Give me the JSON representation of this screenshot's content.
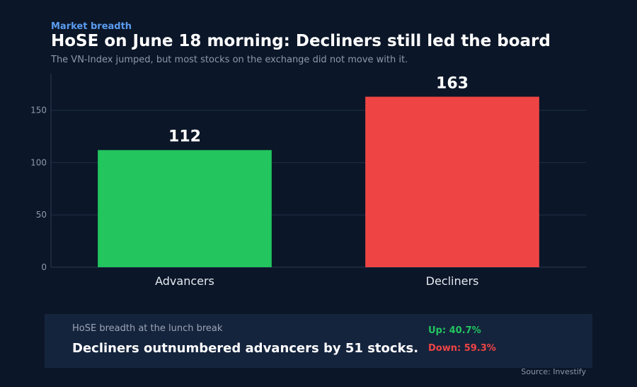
{
  "header": {
    "kicker": "Market breadth",
    "title": "HoSE on June 18 morning: Decliners still led the board",
    "subtitle": "The VN-Index jumped, but most stocks on the exchange did not move with it."
  },
  "chart_data": {
    "type": "bar",
    "categories": [
      "Advancers",
      "Decliners"
    ],
    "values": [
      112,
      163
    ],
    "colors": [
      "#22c55e",
      "#ef4444"
    ],
    "ylim": [
      0,
      185
    ],
    "yticks": [
      0,
      50,
      100,
      150
    ],
    "grid": true,
    "xlabel": "",
    "ylabel": ""
  },
  "summary": {
    "label": "HoSE breadth at the lunch break",
    "headline": "Decliners outnumbered advancers by 51 stocks.",
    "up": "Up: 40.7%",
    "down": "Down: 59.3%"
  },
  "footer": {
    "source": "Source: Investify"
  },
  "colors": {
    "background": "#0b1628",
    "accent": "#5b9cf0",
    "panel": "#15243d",
    "up": "#22c55e",
    "down": "#ef4444"
  }
}
